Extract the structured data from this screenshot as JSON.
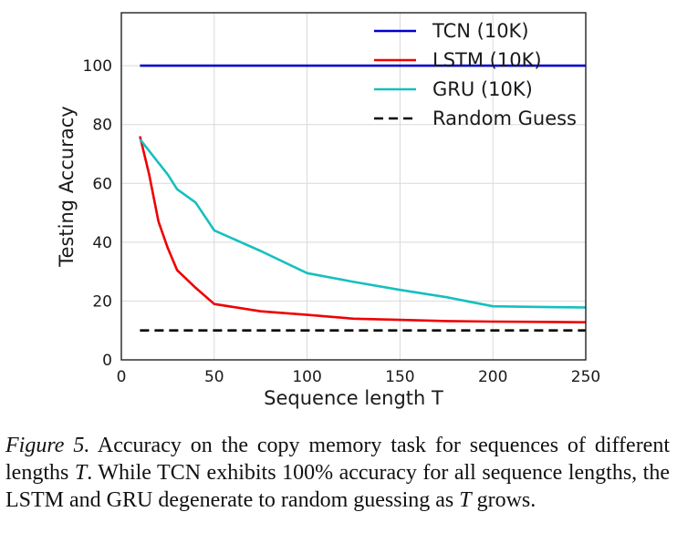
{
  "chart_data": {
    "type": "line",
    "xlabel": "Sequence length T",
    "ylabel": "Testing Accuracy",
    "xlim": [
      0,
      250
    ],
    "ylim": [
      0,
      118
    ],
    "xticks": [
      0,
      50,
      100,
      150,
      200,
      250
    ],
    "yticks": [
      0,
      20,
      40,
      60,
      80,
      100
    ],
    "grid": true,
    "legend_position": "top-right",
    "series": [
      {
        "name": "TCN (10K)",
        "color": "#0000cc",
        "dash": "solid",
        "x": [
          10,
          250
        ],
        "y": [
          100,
          100
        ]
      },
      {
        "name": "LSTM (10K)",
        "color": "#ee0000",
        "dash": "solid",
        "x": [
          10,
          15,
          20,
          25,
          30,
          40,
          50,
          75,
          100,
          125,
          150,
          175,
          200,
          225,
          250
        ],
        "y": [
          76,
          63,
          47,
          38,
          30.5,
          24.5,
          19,
          16.5,
          15.3,
          14,
          13.6,
          13.2,
          13,
          12.9,
          12.8
        ]
      },
      {
        "name": "GRU (10K)",
        "color": "#17bfbf",
        "dash": "solid",
        "x": [
          10,
          20,
          25,
          30,
          40,
          50,
          75,
          100,
          125,
          150,
          175,
          200,
          225,
          250
        ],
        "y": [
          75,
          67,
          63,
          58,
          53.5,
          44,
          37,
          29.5,
          26.5,
          23.8,
          21.3,
          18.2,
          18,
          17.8
        ]
      },
      {
        "name": "Random Guess",
        "color": "#000000",
        "dash": "dashed",
        "x": [
          10,
          250
        ],
        "y": [
          10,
          10
        ]
      }
    ]
  },
  "caption": {
    "figure_label": "Figure 5.",
    "text_1": " Accuracy on the copy memory task for sequences of different lengths ",
    "math_1": "T",
    "text_2": ". While TCN exhibits 100% accuracy for all sequence lengths, the LSTM and GRU degenerate to random guessing as ",
    "math_2": "T",
    "text_3": " grows."
  }
}
